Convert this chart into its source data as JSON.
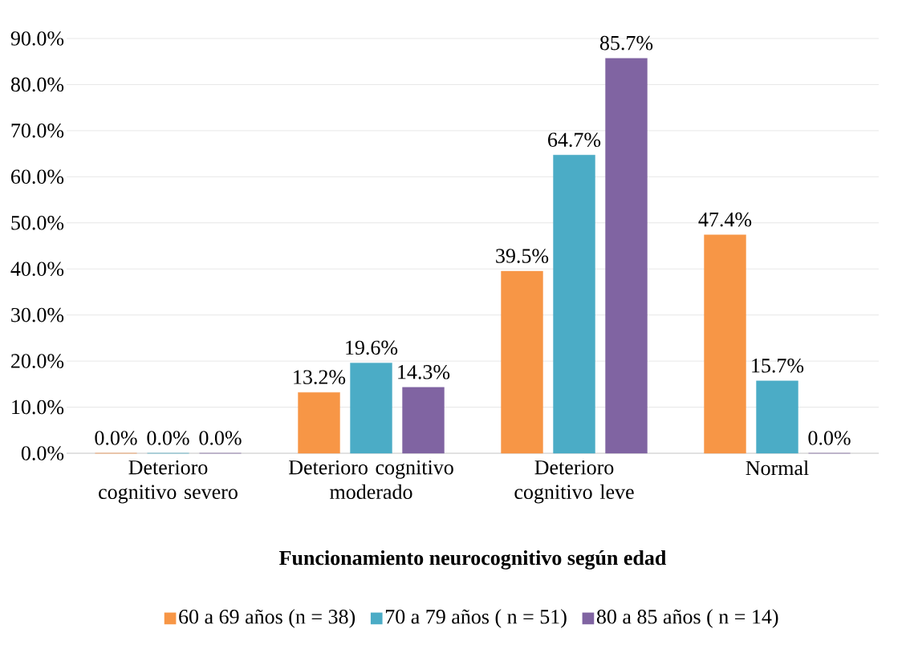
{
  "chart_data": {
    "type": "bar",
    "xlabel": "Funcionamiento neurocognitivo según edad",
    "categories": [
      "Deterioro cognitivo severo",
      "Deterioro cognitivo moderado",
      "Deterioro cognitivo leve",
      "Normal"
    ],
    "series": [
      {
        "name": "60 a 69 años (n = 38)",
        "color": "#f79646",
        "values": [
          0.0,
          13.2,
          39.5,
          47.4
        ],
        "value_labels": [
          "0.0%",
          "13.2%",
          "39.5%",
          "47.4%"
        ]
      },
      {
        "name": "70 a 79 años ( n = 51)",
        "color": "#4bacc6",
        "values": [
          0.0,
          19.6,
          64.7,
          15.7
        ],
        "value_labels": [
          "0.0%",
          "19.6%",
          "64.7%",
          "15.7%"
        ]
      },
      {
        "name": "80 a 85 años ( n = 14)",
        "color": "#8064a2",
        "values": [
          0.0,
          14.3,
          85.7,
          0.0
        ],
        "value_labels": [
          "0.0%",
          "14.3%",
          "85.7%",
          "0.0%"
        ]
      }
    ],
    "ylim": [
      0,
      90
    ],
    "yticks": [
      {
        "value": 0,
        "label": "0.0%"
      },
      {
        "value": 10,
        "label": "10.0%"
      },
      {
        "value": 20,
        "label": "20.0%"
      },
      {
        "value": 30,
        "label": "30.0%"
      },
      {
        "value": 40,
        "label": "40.0%"
      },
      {
        "value": 50,
        "label": "50.0%"
      },
      {
        "value": 60,
        "label": "60.0%"
      },
      {
        "value": 70,
        "label": "70.0%"
      },
      {
        "value": 80,
        "label": "80.0%"
      },
      {
        "value": 90,
        "label": "90.0%"
      }
    ],
    "grid": "y",
    "legend": "bottom"
  }
}
